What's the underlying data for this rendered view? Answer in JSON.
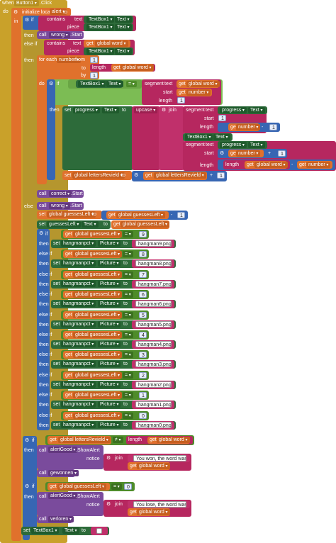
{
  "event": {
    "when": "when",
    "component": "Button1",
    "event": ".Click",
    "do": "do"
  },
  "init": {
    "label": "initialize local",
    "var": "alert",
    "to": "to",
    "in": "in"
  },
  "kw": {
    "if": "if",
    "then": "then",
    "else": "else",
    "else_if": "else if",
    "call": "call",
    "set": "set",
    "to": "to",
    "get": "get",
    "contains": "contains",
    "text": "text",
    "piece": "piece",
    "for_each": "for each",
    "from": "from",
    "by": "by",
    "segment": "segment",
    "start": "start",
    "length": "length",
    "join": "join",
    "upcase": "upcase",
    "notice": "notice",
    "minus": "-",
    "plus": "+",
    "eq": "=",
    "neq": "≠"
  },
  "comp": {
    "TextBox1": "TextBox1",
    "Text": "Text",
    "wrong": "wrong",
    "Start": ".Start",
    "progress": "progress",
    "correct": "correct",
    "guessesLeft": "guessesLeft",
    "hangmanpct": "hangmanpct",
    "Picture": "Picture",
    "alertGood": "alertGood",
    "ShowAlert": ".ShowAlert",
    "gewonnen": "gewonnen",
    "verloren": "verloren"
  },
  "vars": {
    "global_word": "global word",
    "number": "number",
    "global_lettersRevield": "global lettersRevield",
    "global_guessesLeft": "global guessesLeft"
  },
  "nums": {
    "one": "1",
    "zero": "0"
  },
  "ladder": [
    {
      "n": "9",
      "png": "hangman9.png"
    },
    {
      "n": "8",
      "png": "hangman8.png"
    },
    {
      "n": "7",
      "png": "hangman7.png"
    },
    {
      "n": "6",
      "png": "hangman6.png"
    },
    {
      "n": "5",
      "png": "hangman5.png"
    },
    {
      "n": "4",
      "png": "hangman4.png"
    },
    {
      "n": "3",
      "png": "hangman3.png"
    },
    {
      "n": "2",
      "png": "hangman2.png"
    },
    {
      "n": "1",
      "png": "hangman1.png"
    },
    {
      "n": "0",
      "png": "hangman0.png"
    }
  ],
  "messages": {
    "won": "You won, the word was: ",
    "lose": "You lose, the word was: "
  }
}
